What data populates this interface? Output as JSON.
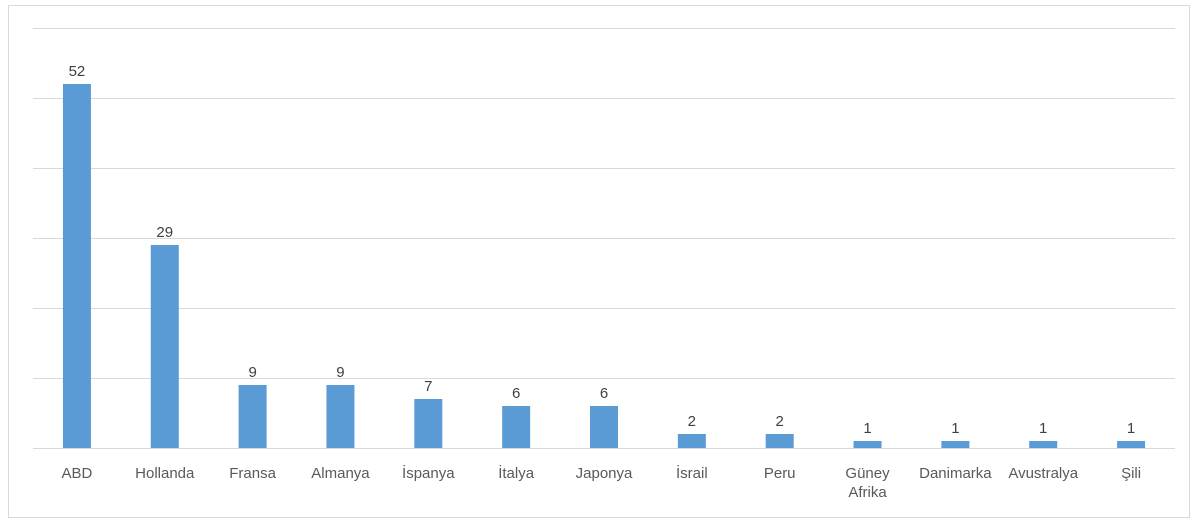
{
  "chart_data": {
    "type": "bar",
    "categories": [
      "ABD",
      "Hollanda",
      "Fransa",
      "Almanya",
      "İspanya",
      "İtalya",
      "Japonya",
      "İsrail",
      "Peru",
      "Güney Afrika",
      "Danimarka",
      "Avustralya",
      "Şili"
    ],
    "series": [
      {
        "values": [
          52,
          29,
          9,
          9,
          7,
          6,
          6,
          2,
          2,
          1,
          1,
          1,
          1
        ],
        "color": "#5b9bd5"
      }
    ],
    "title": "",
    "xlabel": "",
    "ylabel": "",
    "ylim": [
      0,
      60
    ],
    "y_gridline_step": 10,
    "grid": true,
    "gridline_color": "#d9d9d9",
    "data_labels": true,
    "legend": "none",
    "y_tick_labels_visible": false
  }
}
